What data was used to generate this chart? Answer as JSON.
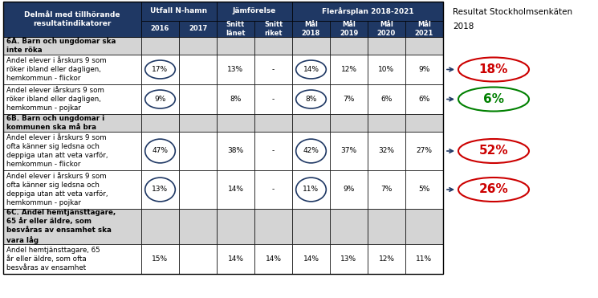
{
  "rows": [
    {
      "label": "6A. Barn och ungdomar ska\ninte röka",
      "type": "section",
      "values": [
        "",
        "",
        "",
        "",
        "",
        "",
        "",
        ""
      ]
    },
    {
      "label": "Andel elever i årskurs 9 som\nröker ibland eller dagligen,\nhemkommun - flickor",
      "type": "data",
      "values": [
        "17%",
        "",
        "13%",
        "-",
        "14%",
        "12%",
        "10%",
        "9%"
      ],
      "circle_2016": true,
      "circle_mal2018": true,
      "result": "18%",
      "result_color": "red"
    },
    {
      "label": "Andel elever iårskurs 9 som\nröker ibland eller dagligen,\nhemkommun - pojkar",
      "type": "data",
      "values": [
        "9%",
        "",
        "8%",
        "-",
        "8%",
        "7%",
        "6%",
        "6%"
      ],
      "circle_2016": true,
      "circle_mal2018": true,
      "result": "6%",
      "result_color": "green"
    },
    {
      "label": "6B. Barn och ungdomar i\nkommunen ska må bra",
      "type": "section",
      "values": [
        "",
        "",
        "",
        "",
        "",
        "",
        "",
        ""
      ]
    },
    {
      "label": "Andel elever i årskurs 9 som\nofta känner sig ledsna och\ndeppiga utan att veta varför,\nhemkommun - flickor",
      "type": "data",
      "values": [
        "47%",
        "",
        "38%",
        "-",
        "42%",
        "37%",
        "32%",
        "27%"
      ],
      "circle_2016": true,
      "circle_mal2018": true,
      "result": "52%",
      "result_color": "red"
    },
    {
      "label": "Andel elever i årskurs 9 som\nofta känner sig ledsna och\ndeppiga utan att veta varför,\nhemkommun - pojkar",
      "type": "data",
      "values": [
        "13%",
        "",
        "14%",
        "-",
        "11%",
        "9%",
        "7%",
        "5%"
      ],
      "circle_2016": true,
      "circle_mal2018": true,
      "result": "26%",
      "result_color": "red"
    },
    {
      "label": "6C. Andel hemtjänsttagare,\n65 år eller äldre, som\nbesvåras av ensamhet ska\nvara låg",
      "type": "section",
      "values": [
        "",
        "",
        "",
        "",
        "",
        "",
        "",
        ""
      ]
    },
    {
      "label": "Andel hemtjänsttagare, 65\når eller äldre, som ofta\nbesvåras av ensamhet",
      "type": "data",
      "values": [
        "15%",
        "",
        "14%",
        "14%",
        "14%",
        "13%",
        "12%",
        "11%"
      ],
      "circle_2016": false,
      "circle_mal2018": false,
      "result": null,
      "result_color": null
    }
  ],
  "section_bg": "#d4d4d4",
  "data_bg": "#ffffff",
  "header_bg": "#1f3864",
  "header_fg": "#ffffff",
  "circle_color": "#1f3864",
  "arrow_color": "#1f3864",
  "red_color": "#cc0000",
  "green_color": "#008000"
}
